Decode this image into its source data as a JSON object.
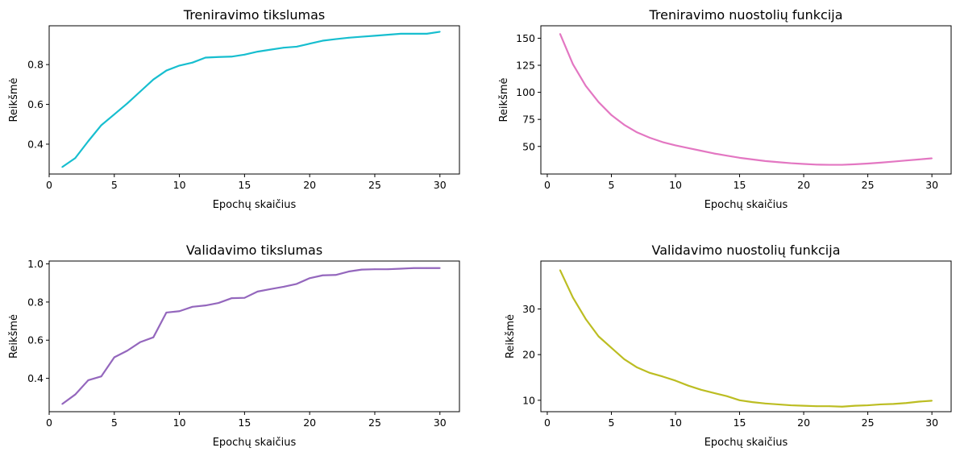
{
  "chart_data": [
    {
      "type": "line",
      "title": "Treniravimo tikslumas",
      "xlabel": "Epochų skaičius",
      "ylabel": "Reikšmė",
      "color": "#17becf",
      "xlim": [
        0,
        31.5
      ],
      "ylim": [
        0.25,
        0.995
      ],
      "xticks": [
        0,
        5,
        10,
        15,
        20,
        25,
        30
      ],
      "yticks": [
        0.4,
        0.6,
        0.8
      ],
      "ytick_labels": [
        "0.4",
        "0.6",
        "0.8"
      ],
      "grid": false,
      "x": [
        1,
        2,
        3,
        4,
        5,
        6,
        7,
        8,
        9,
        10,
        11,
        12,
        13,
        14,
        15,
        16,
        17,
        18,
        19,
        20,
        21,
        22,
        23,
        24,
        25,
        26,
        27,
        28,
        29,
        30
      ],
      "series": [
        {
          "values": [
            0.285,
            0.33,
            0.415,
            0.495,
            0.55,
            0.605,
            0.665,
            0.725,
            0.77,
            0.795,
            0.81,
            0.835,
            0.838,
            0.84,
            0.85,
            0.865,
            0.875,
            0.885,
            0.89,
            0.905,
            0.92,
            0.928,
            0.935,
            0.94,
            0.945,
            0.95,
            0.955,
            0.955,
            0.955,
            0.965
          ]
        }
      ]
    },
    {
      "type": "line",
      "title": "Treniravimo nuostolių funkcija",
      "xlabel": "Epochų skaičius",
      "ylabel": "Reikšmė",
      "color": "#e377c2",
      "xlim": [
        -0.5,
        31.5
      ],
      "ylim": [
        24.5,
        161.5
      ],
      "xticks": [
        0,
        5,
        10,
        15,
        20,
        25,
        30
      ],
      "yticks": [
        50,
        75,
        100,
        125,
        150
      ],
      "ytick_labels": [
        "50",
        "75",
        "100",
        "125",
        "150"
      ],
      "grid": false,
      "x": [
        1,
        2,
        3,
        4,
        5,
        6,
        7,
        8,
        9,
        10,
        11,
        12,
        13,
        14,
        15,
        16,
        17,
        18,
        19,
        20,
        21,
        22,
        23,
        24,
        25,
        26,
        27,
        28,
        29,
        30
      ],
      "series": [
        {
          "values": [
            154,
            126,
            106,
            91,
            79,
            70,
            63,
            58,
            54,
            51,
            48.5,
            46,
            43.5,
            41.5,
            39.5,
            38,
            36.5,
            35.5,
            34.5,
            33.8,
            33.2,
            33,
            33,
            33.5,
            34.2,
            35,
            36,
            37,
            38,
            39
          ]
        }
      ]
    },
    {
      "type": "line",
      "title": "Validavimo tikslumas",
      "xlabel": "Epochų skaičius",
      "ylabel": "Reikšmė",
      "color": "#9467bd",
      "xlim": [
        0,
        31.5
      ],
      "ylim": [
        0.225,
        1.015
      ],
      "xticks": [
        0,
        5,
        10,
        15,
        20,
        25,
        30
      ],
      "yticks": [
        0.4,
        0.6,
        0.8,
        1.0
      ],
      "ytick_labels": [
        "0.4",
        "0.6",
        "0.8",
        "1.0"
      ],
      "grid": false,
      "x": [
        1,
        2,
        3,
        4,
        5,
        6,
        7,
        8,
        9,
        10,
        11,
        12,
        13,
        14,
        15,
        16,
        17,
        18,
        19,
        20,
        21,
        22,
        23,
        24,
        25,
        26,
        27,
        28,
        29,
        30
      ],
      "series": [
        {
          "values": [
            0.265,
            0.315,
            0.39,
            0.41,
            0.51,
            0.545,
            0.59,
            0.615,
            0.745,
            0.752,
            0.775,
            0.782,
            0.795,
            0.82,
            0.822,
            0.855,
            0.868,
            0.88,
            0.895,
            0.925,
            0.94,
            0.942,
            0.96,
            0.97,
            0.972,
            0.972,
            0.975,
            0.978,
            0.978,
            0.978
          ]
        }
      ]
    },
    {
      "type": "line",
      "title": "Validavimo nuostolių funkcija",
      "xlabel": "Epochų skaičius",
      "ylabel": "Reikšmė",
      "color": "#bcbd22",
      "xlim": [
        -0.5,
        31.5
      ],
      "ylim": [
        7.5,
        40.5
      ],
      "xticks": [
        0,
        5,
        10,
        15,
        20,
        25,
        30
      ],
      "yticks": [
        10,
        20,
        30
      ],
      "ytick_labels": [
        "10",
        "20",
        "30"
      ],
      "grid": false,
      "x": [
        1,
        2,
        3,
        4,
        5,
        6,
        7,
        8,
        9,
        10,
        11,
        12,
        13,
        14,
        15,
        16,
        17,
        18,
        19,
        20,
        21,
        22,
        23,
        24,
        25,
        26,
        27,
        28,
        29,
        30
      ],
      "series": [
        {
          "values": [
            38.5,
            32.5,
            27.8,
            24,
            21.5,
            19,
            17.2,
            16,
            15.2,
            14.3,
            13.2,
            12.3,
            11.6,
            10.9,
            10,
            9.6,
            9.3,
            9.1,
            8.9,
            8.8,
            8.7,
            8.7,
            8.6,
            8.8,
            8.9,
            9.1,
            9.2,
            9.4,
            9.7,
            9.9
          ]
        }
      ]
    }
  ]
}
